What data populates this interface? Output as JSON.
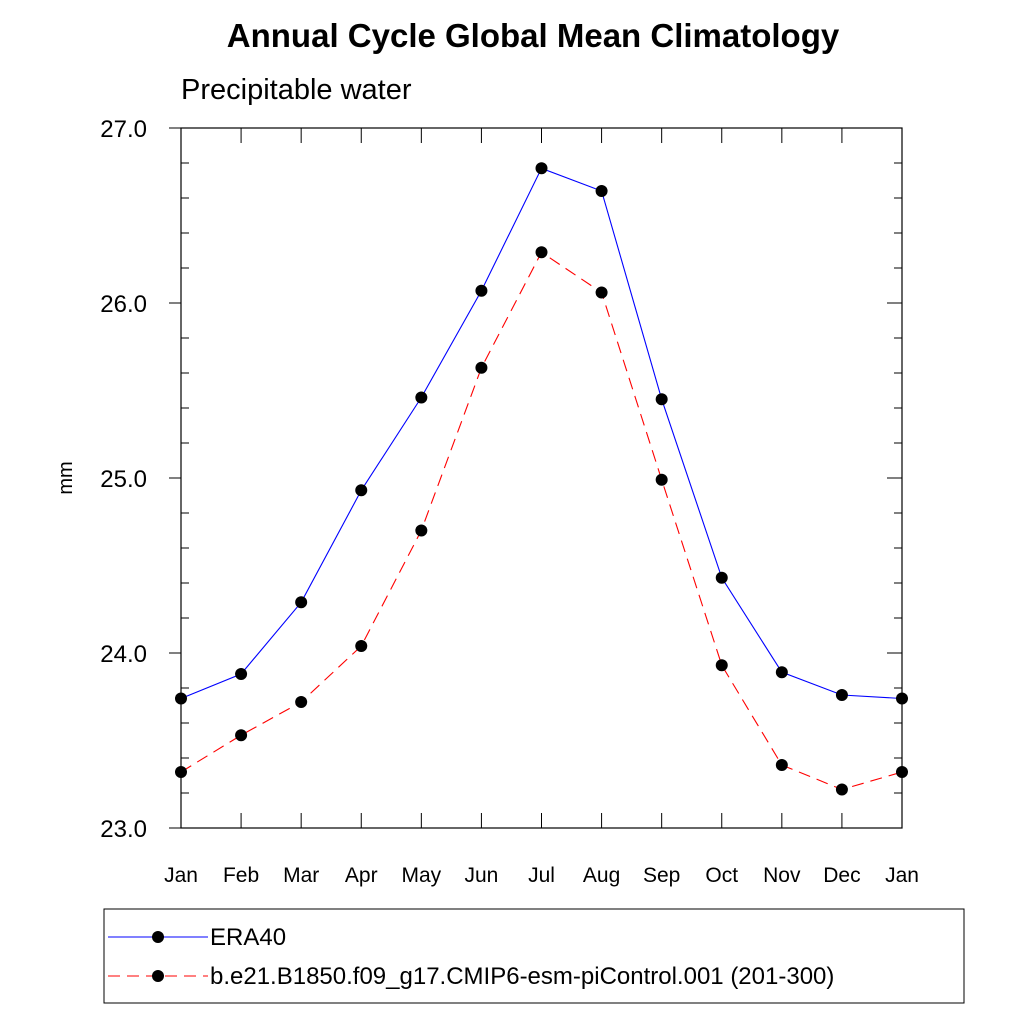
{
  "chart_data": {
    "type": "line",
    "title": "Annual Cycle Global Mean Climatology",
    "subtitle": "Precipitable water",
    "xlabel": "",
    "ylabel": "mm",
    "categories": [
      "Jan",
      "Feb",
      "Mar",
      "Apr",
      "May",
      "Jun",
      "Jul",
      "Aug",
      "Sep",
      "Oct",
      "Nov",
      "Dec",
      "Jan"
    ],
    "ylim": [
      23.0,
      27.0
    ],
    "yticks": [
      "23.0",
      "24.0",
      "25.0",
      "26.0",
      "27.0"
    ],
    "grid": false,
    "legend_position": "bottom",
    "series": [
      {
        "name": "ERA40",
        "color": "#0000ff",
        "line_style": "solid",
        "marker": "filled-circle",
        "values": [
          23.74,
          23.88,
          24.29,
          24.93,
          25.46,
          26.07,
          26.77,
          26.64,
          25.45,
          24.43,
          23.89,
          23.76,
          23.74
        ]
      },
      {
        "name": "b.e21.B1850.f09_g17.CMIP6-esm-piControl.001 (201-300)",
        "color": "#ff0000",
        "line_style": "dashed",
        "marker": "filled-circle",
        "values": [
          23.32,
          23.53,
          23.72,
          24.04,
          24.7,
          25.63,
          26.29,
          26.06,
          24.99,
          23.93,
          23.36,
          23.22,
          23.32
        ]
      }
    ]
  }
}
